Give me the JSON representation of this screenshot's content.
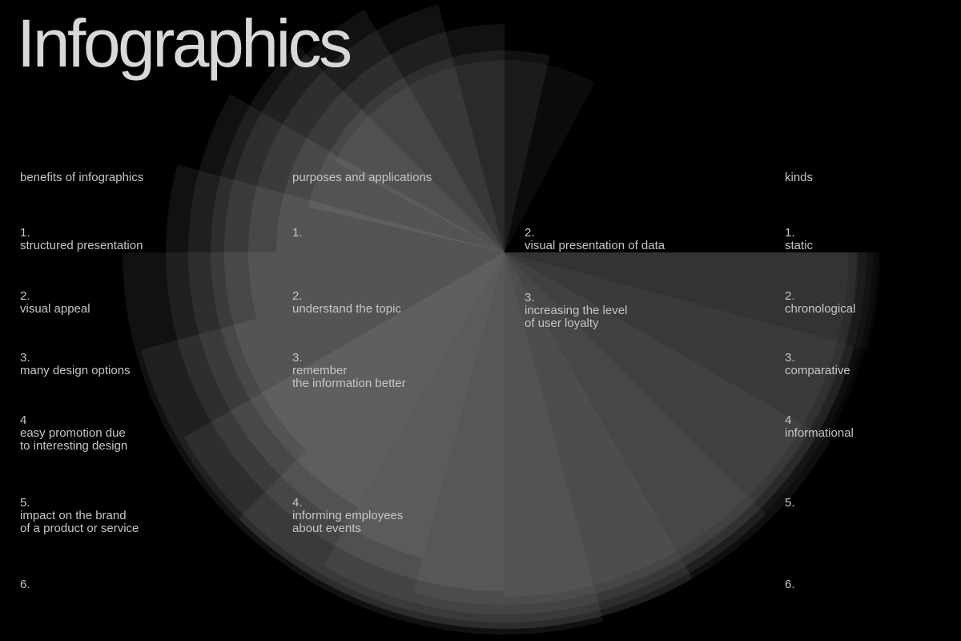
{
  "title": "Infographics",
  "colors": {
    "background": "#000000",
    "text": "#c6c6c6",
    "title": "#d8d8d8",
    "fan": "#ffffff"
  },
  "columns": {
    "benefits": {
      "heading": "benefits of infographics",
      "items": [
        {
          "number": "1.",
          "lines": [
            "structured presentation"
          ]
        },
        {
          "number": "2.",
          "lines": [
            "visual appeal"
          ]
        },
        {
          "number": "3.",
          "lines": [
            "many design options"
          ]
        },
        {
          "number": "4",
          "lines": [
            "easy promotion due",
            "to interesting design"
          ]
        },
        {
          "number": "5.",
          "lines": [
            "impact on the brand",
            "of a product or service"
          ]
        },
        {
          "number": "6.",
          "lines": []
        }
      ]
    },
    "purposes": {
      "heading": "purposes and applications",
      "left_items": [
        {
          "number": "1.",
          "lines": []
        },
        {
          "number": "2.",
          "lines": [
            "understand the topic"
          ]
        },
        {
          "number": "3.",
          "lines": [
            "remember",
            "the information better"
          ]
        },
        {
          "number": "4.",
          "lines": [
            "informing employees",
            "about events"
          ]
        }
      ],
      "right_items": [
        {
          "number": "2.",
          "lines": [
            "visual presentation of data"
          ]
        },
        {
          "number": "3.",
          "lines": [
            "increasing the level",
            "of user loyalty"
          ]
        }
      ]
    },
    "kinds": {
      "heading": "kinds",
      "items": [
        {
          "number": "1.",
          "lines": [
            "static"
          ]
        },
        {
          "number": "2.",
          "lines": [
            "chronological"
          ]
        },
        {
          "number": "3.",
          "lines": [
            "comparative"
          ]
        },
        {
          "number": "4",
          "lines": [
            "informational"
          ]
        },
        {
          "number": "5.",
          "lines": []
        },
        {
          "number": "6.",
          "lines": []
        }
      ]
    }
  }
}
